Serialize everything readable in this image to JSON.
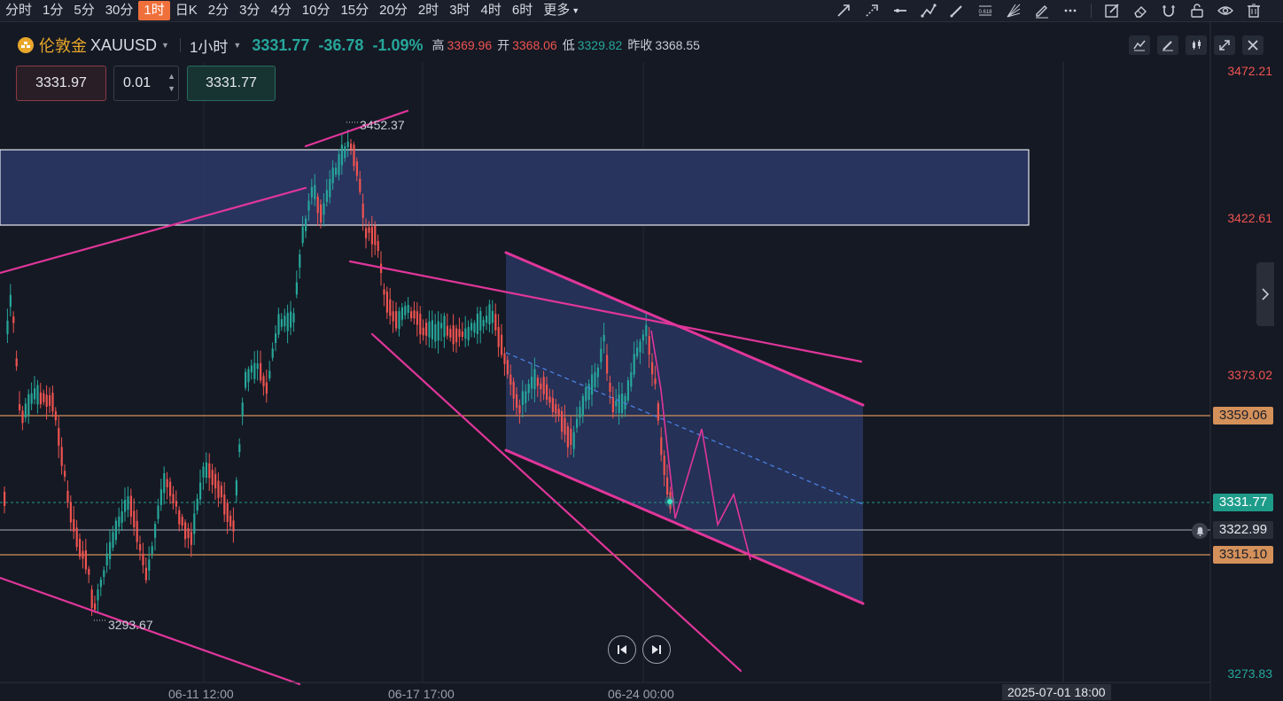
{
  "timeframes": [
    "分时",
    "1分",
    "5分",
    "30分",
    "1时",
    "日K",
    "2分",
    "3分",
    "4分",
    "10分",
    "15分",
    "20分",
    "2时",
    "3时",
    "4时",
    "6时",
    "更多"
  ],
  "active_timeframe_index": 4,
  "toolbar_icons": [
    "arrow-line-icon",
    "dashed-arrow-icon",
    "horizontal-line-icon",
    "polyline-icon",
    "pen-line-icon",
    "fibonacci-icon",
    "fan-icon",
    "pencil-icon",
    "ellipsis-icon",
    "edit-box-icon",
    "eraser-icon",
    "magnet-icon",
    "lock-icon",
    "eye-icon",
    "trash-icon"
  ],
  "fib_icon_text": "0.618",
  "symbol": {
    "name": "伦敦金",
    "code": "XAUUSD",
    "interval": "1小时",
    "last": "3331.77",
    "change": "-36.78",
    "change_pct": "-1.09%",
    "high_label": "高",
    "high": "3369.96",
    "open_label": "开",
    "open": "3368.06",
    "low_label": "低",
    "low": "3329.82",
    "prev_close_label": "昨收",
    "prev_close": "3368.55"
  },
  "trade": {
    "sell_price": "3331.97",
    "lot": "0.01",
    "buy_price": "3331.77"
  },
  "price_axis": [
    "3472.21",
    "3422.61",
    "3373.02",
    "3273.83"
  ],
  "price_tags": {
    "resistance": "3359.06",
    "current": "3331.77",
    "alert_line": "3322.99",
    "support": "3315.10"
  },
  "annotations": {
    "high_marker": "3452.37",
    "low_marker": "3293.67"
  },
  "time_axis": [
    "06-11 12:00",
    "06-17 17:00",
    "06-24 00:00"
  ],
  "crosshair_time": "2025-07-01 18:00",
  "colors": {
    "background": "#151924",
    "up": "#26a69a",
    "down": "#ef5350",
    "trendline": "#e0369a",
    "zone": "#2a3a66",
    "level": "#d4915a",
    "active_tab": "#f0703c"
  }
}
